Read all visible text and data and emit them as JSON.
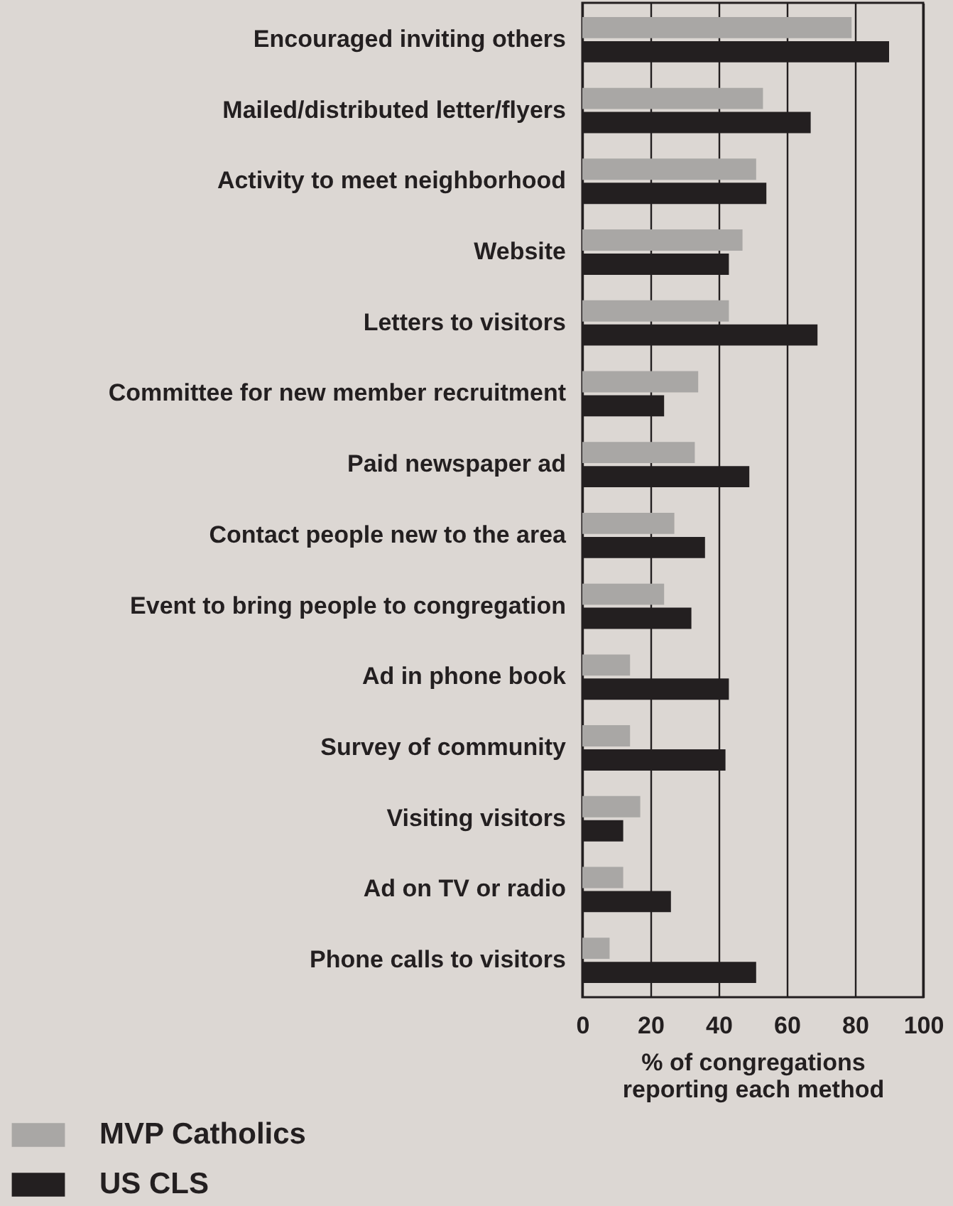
{
  "chart_data": {
    "type": "bar",
    "orientation": "horizontal",
    "categories": [
      "Encouraged inviting others",
      "Mailed/distributed letter/flyers",
      "Activity to meet neighborhood",
      "Website",
      "Letters to visitors",
      "Committee for new member recruitment",
      "Paid newspaper ad",
      "Contact people new to the area",
      "Event to bring people to congregation",
      "Ad in phone book",
      "Survey of community",
      "Visiting visitors",
      "Ad on TV or radio",
      "Phone calls to visitors"
    ],
    "series": [
      {
        "name": "MVP Catholics",
        "color": "#a9a7a5",
        "values": [
          79,
          53,
          51,
          47,
          43,
          34,
          33,
          27,
          24,
          14,
          14,
          17,
          12,
          8
        ]
      },
      {
        "name": "US CLS",
        "color": "#231f20",
        "values": [
          90,
          67,
          54,
          43,
          69,
          24,
          49,
          36,
          32,
          43,
          42,
          12,
          26,
          51
        ]
      }
    ],
    "xlabel": "% of congregations\nreporting each method",
    "xlim": [
      0,
      100
    ],
    "xticks": [
      0,
      20,
      40,
      60,
      80,
      100
    ],
    "grid": "x",
    "legend": "bottom left"
  }
}
